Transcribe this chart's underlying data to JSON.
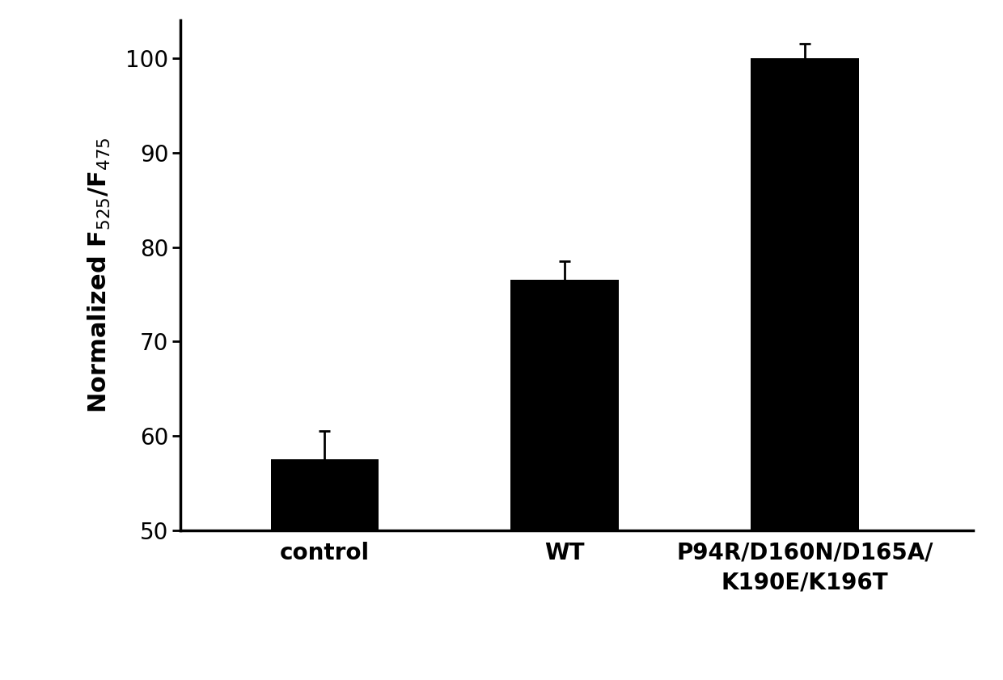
{
  "categories": [
    "control",
    "WT",
    "P94R/D160N/D165A/\nK190E/K196T"
  ],
  "values": [
    57.5,
    76.5,
    100.0
  ],
  "errors": [
    3.0,
    2.0,
    1.5
  ],
  "bar_color": "#000000",
  "bar_edgecolor": "#000000",
  "bar_width": 0.45,
  "ylabel": "Normalized F$_{525}$/F$_{475}$",
  "ylim": [
    50,
    104
  ],
  "yticks": [
    50,
    60,
    70,
    80,
    90,
    100
  ],
  "ylabel_fontsize": 22,
  "tick_fontsize": 20,
  "xlabel_fontsize": 20,
  "background_color": "#ffffff",
  "error_capsize": 5,
  "error_linewidth": 2.0,
  "bar_positions": [
    0,
    1,
    2
  ],
  "xlim": [
    -0.6,
    2.7
  ]
}
